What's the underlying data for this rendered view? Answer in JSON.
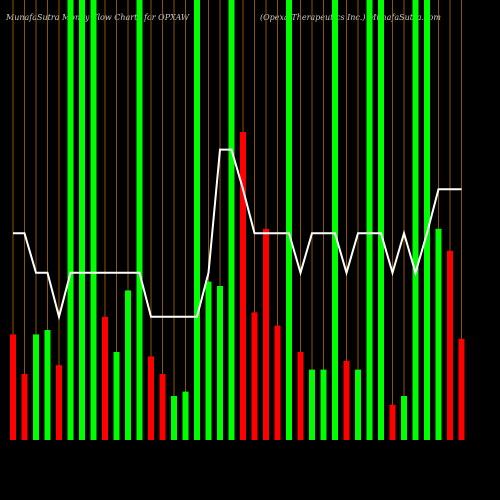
{
  "chart_data": {
    "type": "bar",
    "title": "MunafaSutra  Money Flow  Charts for OPXAW",
    "subtitle": "(Opexa  Therapeutics  Inc.) MunafaSutra.com",
    "ylim": [
      0,
      100
    ],
    "series": [
      {
        "name": "Money Flow",
        "values": [
          24,
          15,
          24,
          25,
          17,
          100,
          100,
          100,
          28,
          20,
          34,
          100,
          19,
          15,
          10,
          11,
          100,
          36,
          35,
          100,
          70,
          29,
          48,
          26,
          100,
          20,
          16,
          16,
          100,
          18,
          16,
          100,
          100,
          8,
          10,
          100,
          100,
          48,
          43,
          23
        ],
        "colors": [
          "#ff0000",
          "#ff0000",
          "#00ff00",
          "#00ff00",
          "#ff0000",
          "#00ff00",
          "#00ff00",
          "#00ff00",
          "#ff0000",
          "#00ff00",
          "#00ff00",
          "#00ff00",
          "#ff0000",
          "#ff0000",
          "#00ff00",
          "#00ff00",
          "#00ff00",
          "#00ff00",
          "#00ff00",
          "#00ff00",
          "#ff0000",
          "#ff0000",
          "#ff0000",
          "#ff0000",
          "#00ff00",
          "#ff0000",
          "#00ff00",
          "#00ff00",
          "#00ff00",
          "#ff0000",
          "#00ff00",
          "#00ff00",
          "#00ff00",
          "#ff0000",
          "#00ff00",
          "#00ff00",
          "#00ff00",
          "#00ff00",
          "#ff0000",
          "#ff0000"
        ]
      },
      {
        "name": "Price",
        "color": "#ffffff",
        "values": [
          47,
          47,
          38,
          38,
          28,
          38,
          38,
          38,
          38,
          38,
          38,
          38,
          28,
          28,
          28,
          28,
          28,
          38,
          66,
          66,
          57,
          47,
          47,
          47,
          47,
          38,
          47,
          47,
          47,
          38,
          47,
          47,
          47,
          38,
          47,
          38,
          47,
          57,
          57,
          57
        ]
      }
    ],
    "gridline_color": "#b36b00"
  }
}
